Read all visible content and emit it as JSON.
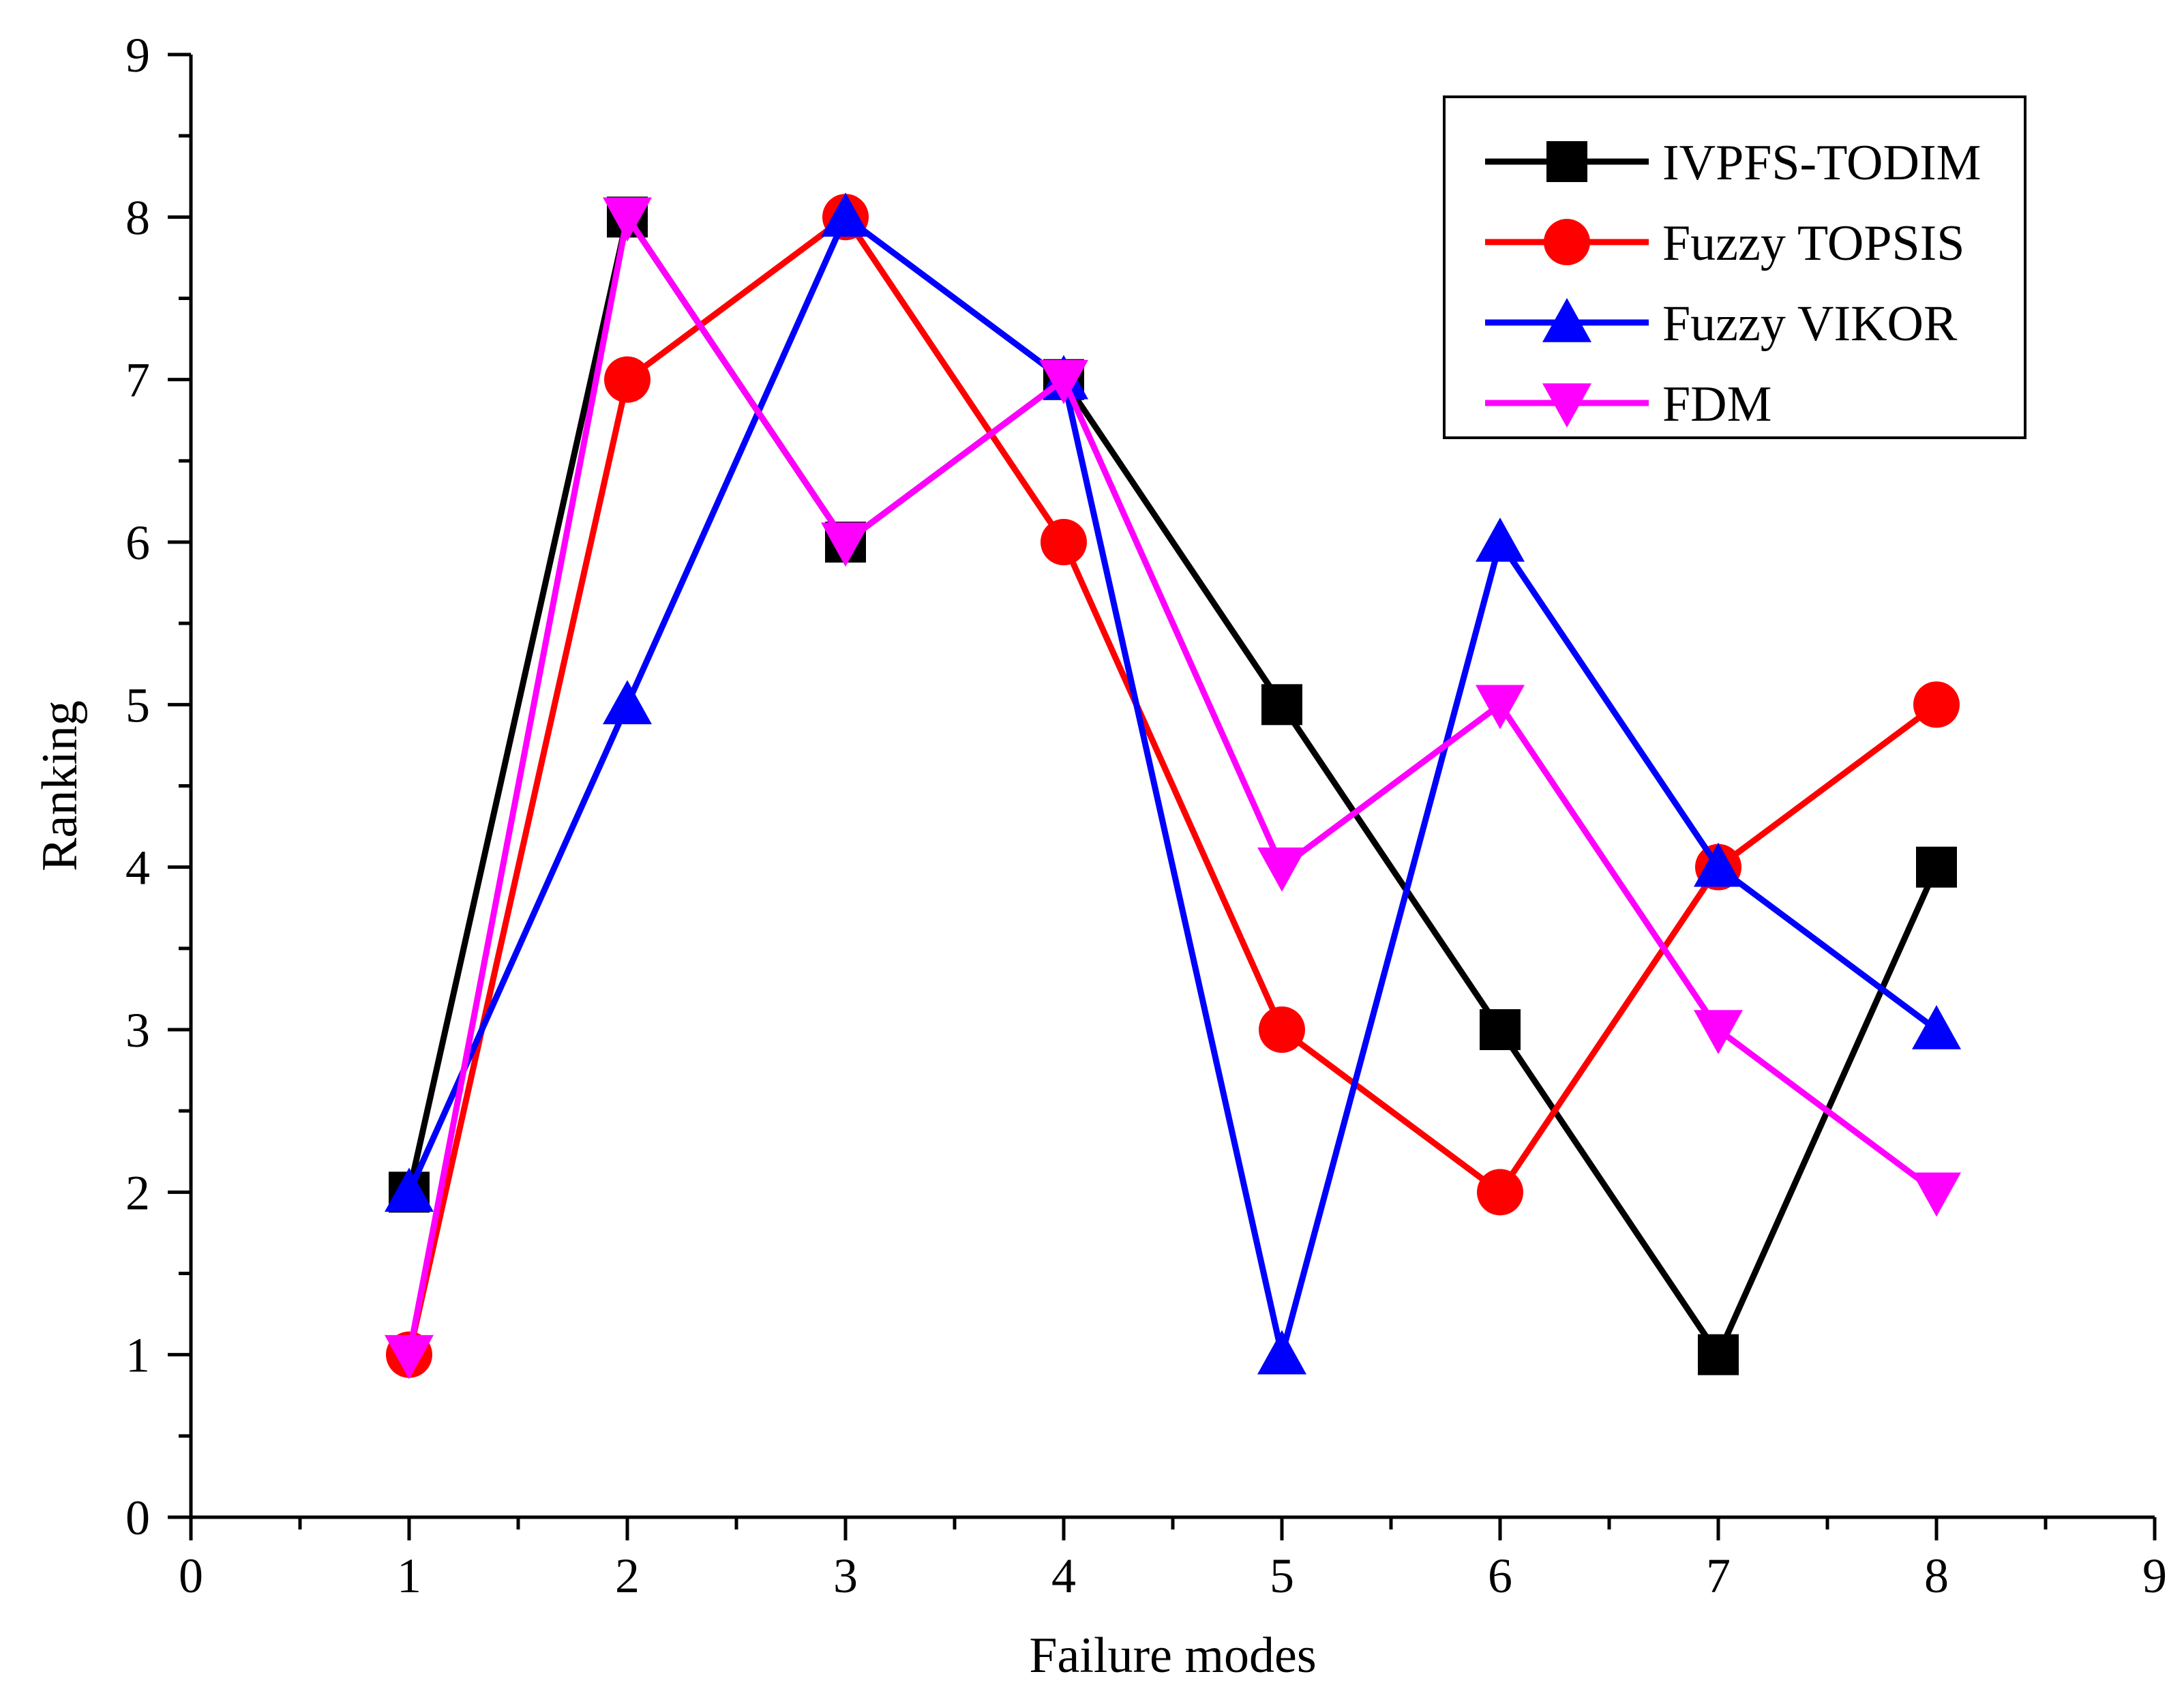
{
  "chart_data": {
    "type": "line",
    "title": "",
    "xlabel": "Failure modes",
    "ylabel": "Ranking",
    "xlim": [
      0,
      9
    ],
    "ylim": [
      0,
      9
    ],
    "xticks": [
      0,
      1,
      2,
      3,
      4,
      5,
      6,
      7,
      8,
      9
    ],
    "yticks": [
      0,
      1,
      2,
      3,
      4,
      5,
      6,
      7,
      8,
      9
    ],
    "grid": false,
    "legend_position": "top-right",
    "x": [
      1,
      2,
      3,
      4,
      5,
      6,
      7,
      8
    ],
    "series": [
      {
        "name": "IVPFS-TODIM",
        "values": [
          2,
          8,
          6,
          7,
          5,
          3,
          1,
          4
        ],
        "color": "#000000",
        "marker": "square"
      },
      {
        "name": "Fuzzy TOPSIS",
        "values": [
          1,
          7,
          8,
          6,
          3,
          2,
          4,
          5
        ],
        "color": "#ff0000",
        "marker": "circle"
      },
      {
        "name": "Fuzzy VIKOR",
        "values": [
          2,
          5,
          8,
          7,
          1,
          6,
          4,
          3
        ],
        "color": "#0000ff",
        "marker": "triangle-up"
      },
      {
        "name": "FDM",
        "values": [
          1,
          8,
          6,
          7,
          4,
          5,
          3,
          2
        ],
        "color": "#ff00ff",
        "marker": "triangle-down"
      }
    ]
  }
}
